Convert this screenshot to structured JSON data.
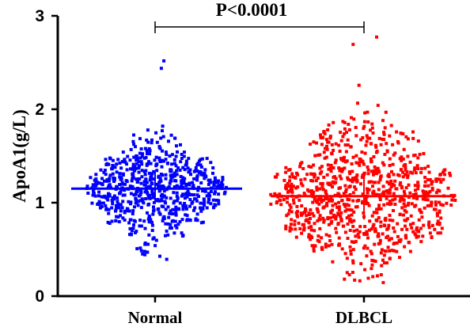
{
  "chart_data": {
    "type": "scatter",
    "subtype": "dot-plot-with-median",
    "ylabel": "ApoA1(g/L)",
    "xlabel": "",
    "ylim": [
      0,
      3
    ],
    "yticks": [
      0,
      1,
      2,
      3
    ],
    "categories": [
      "Normal",
      "DLBCL"
    ],
    "annotation": "P<0.0001",
    "series": [
      {
        "name": "Normal",
        "color": "#0000ff",
        "n_points": 700,
        "median": 1.15,
        "min": 0.4,
        "max": 2.52,
        "q1": 1.0,
        "q3": 1.33
      },
      {
        "name": "DLBCL",
        "color": "#ff0000",
        "n_points": 900,
        "median": 1.07,
        "min": 0.15,
        "max": 2.77,
        "q1": 0.82,
        "q3": 1.32
      }
    ],
    "grid": false,
    "legend": "none"
  }
}
